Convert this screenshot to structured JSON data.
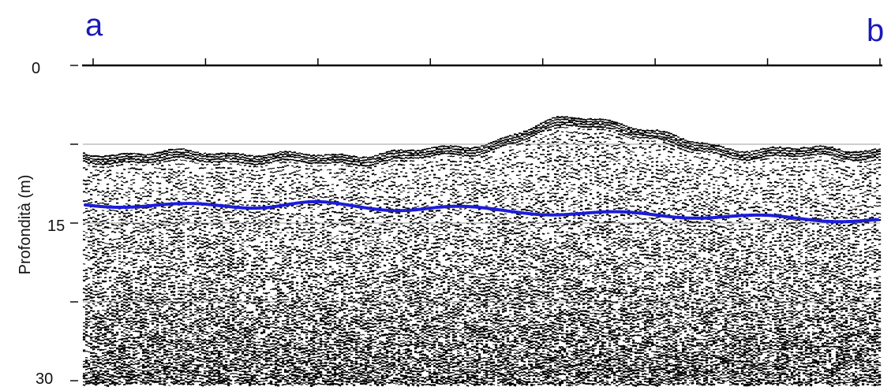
{
  "profile": {
    "start_label": "a",
    "end_label": "b"
  },
  "depth_axis": {
    "title": "Profondità (m)",
    "unit": "m",
    "range": [
      0,
      30
    ],
    "ticks": [
      {
        "value": 0,
        "label": "0"
      },
      {
        "value": 15,
        "label": "15"
      },
      {
        "value": 30,
        "label": "30"
      }
    ],
    "minor_gridlines": [
      7.5,
      22.5
    ]
  },
  "section": {
    "fill_color": "#ffffff",
    "trace_color": "#000000",
    "top_reflector_depth_range": [
      6,
      8.5
    ]
  },
  "interpreted_horizon": {
    "color": "#1c1cd9",
    "depth_range": [
      12.5,
      14
    ]
  },
  "colors": {
    "labels": "#1a1ab8",
    "axis": "#000000",
    "grid": "#777777"
  }
}
